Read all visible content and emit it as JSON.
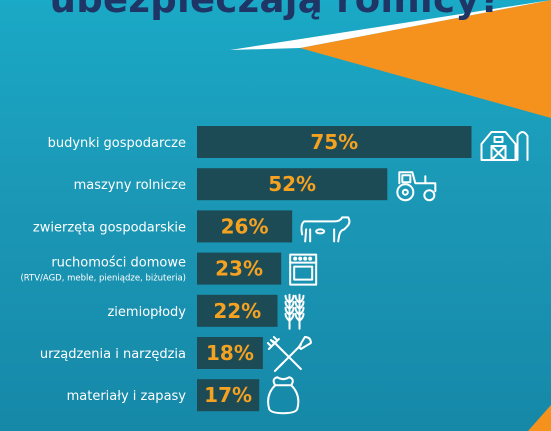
{
  "title": "ubezpieczają rolnicy?",
  "colors": {
    "background_top": "#1aa9c6",
    "background_bottom": "#1688a8",
    "bar": "#1c4a55",
    "value_text": "#f6a221",
    "accent_orange": "#f5921e",
    "title_text": "#1f3566"
  },
  "chart_data": {
    "type": "bar",
    "orientation": "horizontal",
    "title": "ubezpieczają rolnicy?",
    "categories": [
      "budynki gospodarcze",
      "maszyny rolnicze",
      "zwierzęta gospodarskie",
      "ruchomości domowe",
      "ziemiopłody",
      "urządzenia i narzędzia",
      "materiały i zapasy"
    ],
    "category_notes": [
      "",
      "",
      "",
      "(RTV/AGD, meble, pieniądze, biżuteria)",
      "",
      "",
      ""
    ],
    "values": [
      75,
      52,
      26,
      23,
      22,
      18,
      17
    ],
    "value_labels": [
      "75%",
      "52%",
      "26%",
      "23%",
      "22%",
      "18%",
      "17%"
    ],
    "icons": [
      "barn-icon",
      "tractor-icon",
      "cow-icon",
      "stove-icon",
      "wheat-icon",
      "rake-shovel-icon",
      "sack-icon"
    ],
    "xlim": [
      0,
      100
    ],
    "grid": false,
    "legend": "none"
  }
}
